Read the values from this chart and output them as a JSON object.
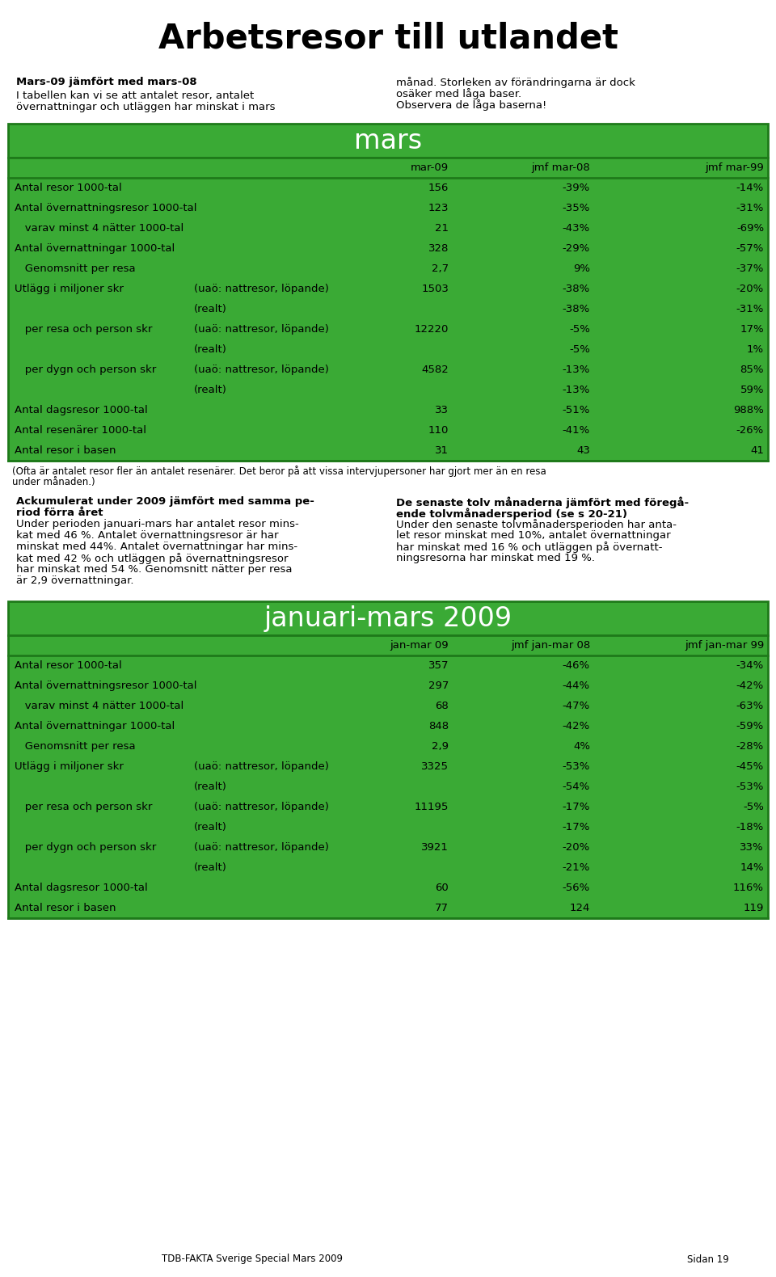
{
  "title": "Arbetsresor till utlandet",
  "intro_left_bold": "Mars-09 jämfört med mars-08",
  "intro_left_line1": "I tabellen kan vi se att antalet resor, antalet",
  "intro_left_line2": "övernattningar och utläggen har minskat i mars",
  "intro_right_line1": "månad. Storleken av förändringarna är dock",
  "intro_right_line2": "osäker med låga baser.",
  "intro_right_line3": "Observera de låga baserna!",
  "green_color": "#3aaa35",
  "dark_green": "#1e7a1a",
  "section1_header": "mars",
  "section1_col_headers": [
    "mar-09",
    "jmf mar-08",
    "jmf mar-99"
  ],
  "section1_rows": [
    {
      "label": "Antal resor 1000-tal",
      "sub": "",
      "v1": "156",
      "v2": "-39%",
      "v3": "-14%"
    },
    {
      "label": "Antal övernattningsresor 1000-tal",
      "sub": "",
      "v1": "123",
      "v2": "-35%",
      "v3": "-31%"
    },
    {
      "label": "   varav minst 4 nätter 1000-tal",
      "sub": "",
      "v1": "21",
      "v2": "-43%",
      "v3": "-69%"
    },
    {
      "label": "Antal övernattningar 1000-tal",
      "sub": "",
      "v1": "328",
      "v2": "-29%",
      "v3": "-57%"
    },
    {
      "label": "   Genomsnitt per resa",
      "sub": "",
      "v1": "2,7",
      "v2": "9%",
      "v3": "-37%"
    },
    {
      "label": "Utlägg i miljoner skr",
      "sub": "(uaö: nattresor, löpande)",
      "v1": "1503",
      "v2": "-38%",
      "v3": "-20%"
    },
    {
      "label": "",
      "sub": "(realt)",
      "v1": "",
      "v2": "-38%",
      "v3": "-31%"
    },
    {
      "label": "   per resa och person skr",
      "sub": "(uaö: nattresor, löpande)",
      "v1": "12220",
      "v2": "-5%",
      "v3": "17%"
    },
    {
      "label": "",
      "sub": "(realt)",
      "v1": "",
      "v2": "-5%",
      "v3": "1%"
    },
    {
      "label": "   per dygn och person skr",
      "sub": "(uaö: nattresor, löpande)",
      "v1": "4582",
      "v2": "-13%",
      "v3": "85%"
    },
    {
      "label": "",
      "sub": "(realt)",
      "v1": "",
      "v2": "-13%",
      "v3": "59%"
    },
    {
      "label": "Antal dagsresor 1000-tal",
      "sub": "",
      "v1": "33",
      "v2": "-51%",
      "v3": "988%"
    },
    {
      "label": "Antal resenärer 1000-tal",
      "sub": "",
      "v1": "110",
      "v2": "-41%",
      "v3": "-26%"
    },
    {
      "label": "Antal resor i basen",
      "sub": "",
      "v1": "31",
      "v2": "43",
      "v3": "41"
    }
  ],
  "footnote_line1": "(Ofta är antalet resor fler än antalet resenärer. Det beror på att vissa intervjupersoner har gjort mer än en resa",
  "footnote_line2": "under månaden.)",
  "body_left_bold1": "Ackumulerat under 2009 jämfört med samma pe-",
  "body_left_bold2": "riod förra året",
  "body_left_lines": [
    "Under perioden januari-mars har antalet resor mins-",
    "kat med 46 %. Antalet övernattningsresor är har",
    "minskat med 44%. Antalet övernattningar har mins-",
    "kat med 42 % och utläggen på övernattningsresor",
    "har minskat med 54 %. Genomsnitt nätter per resa",
    "är 2,9 övernattningar."
  ],
  "body_right_bold1": "De senaste tolv månaderna jämfört med föregå-",
  "body_right_bold2": "ende tolvmånadersperiod (se s 20-21)",
  "body_right_lines": [
    "Under den senaste tolvmånadersperioden har anta-",
    "let resor minskat med 10%, antalet övernattningar",
    "har minskat med 16 % och utläggen på övernatt-",
    "ningsresorna har minskat med 19 %."
  ],
  "section2_header": "januari-mars 2009",
  "section2_col_headers": [
    "jan-mar 09",
    "jmf jan-mar 08",
    "jmf jan-mar 99"
  ],
  "section2_rows": [
    {
      "label": "Antal resor 1000-tal",
      "sub": "",
      "v1": "357",
      "v2": "-46%",
      "v3": "-34%"
    },
    {
      "label": "Antal övernattningsresor 1000-tal",
      "sub": "",
      "v1": "297",
      "v2": "-44%",
      "v3": "-42%"
    },
    {
      "label": "   varav minst 4 nätter 1000-tal",
      "sub": "",
      "v1": "68",
      "v2": "-47%",
      "v3": "-63%"
    },
    {
      "label": "Antal övernattningar 1000-tal",
      "sub": "",
      "v1": "848",
      "v2": "-42%",
      "v3": "-59%"
    },
    {
      "label": "   Genomsnitt per resa",
      "sub": "",
      "v1": "2,9",
      "v2": "4%",
      "v3": "-28%"
    },
    {
      "label": "Utlägg i miljoner skr",
      "sub": "(uaö: nattresor, löpande)",
      "v1": "3325",
      "v2": "-53%",
      "v3": "-45%"
    },
    {
      "label": "",
      "sub": "(realt)",
      "v1": "",
      "v2": "-54%",
      "v3": "-53%"
    },
    {
      "label": "   per resa och person skr",
      "sub": "(uaö: nattresor, löpande)",
      "v1": "11195",
      "v2": "-17%",
      "v3": "-5%"
    },
    {
      "label": "",
      "sub": "(realt)",
      "v1": "",
      "v2": "-17%",
      "v3": "-18%"
    },
    {
      "label": "   per dygn och person skr",
      "sub": "(uaö: nattresor, löpande)",
      "v1": "3921",
      "v2": "-20%",
      "v3": "33%"
    },
    {
      "label": "",
      "sub": "(realt)",
      "v1": "",
      "v2": "-21%",
      "v3": "14%"
    },
    {
      "label": "Antal dagsresor 1000-tal",
      "sub": "",
      "v1": "60",
      "v2": "-56%",
      "v3": "116%"
    },
    {
      "label": "Antal resor i basen",
      "sub": "",
      "v1": "77",
      "v2": "124",
      "v3": "119"
    }
  ],
  "footer_left": "TDB-FAKTA Sverige Special Mars 2009",
  "footer_right": "Sidan 19"
}
